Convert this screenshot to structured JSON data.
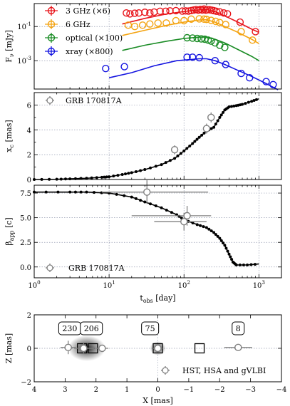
{
  "chart_data": [
    {
      "type": "scatter",
      "panel": "light curves",
      "ylabel": "F_ν [mJy]",
      "yscale": "log",
      "xscale": "log",
      "xlim": [
        1,
        2000
      ],
      "ylim": [
        2.2e-05,
        2.2
      ],
      "y_ticks": [
        {
          "value": 0.1,
          "label": "10^-1"
        },
        {
          "value": 0.001,
          "label": "10^-3"
        }
      ],
      "legend_position": "upper-left",
      "grid": true,
      "series": [
        {
          "name": "3 GHz (×6)",
          "color": "#e8141a",
          "points": [
            [
              17,
              0.62
            ],
            [
              19,
              0.55
            ],
            [
              22,
              0.6
            ],
            [
              25,
              0.62
            ],
            [
              30,
              0.68
            ],
            [
              35,
              0.62
            ],
            [
              40,
              0.7
            ],
            [
              48,
              0.78
            ],
            [
              57,
              0.78
            ],
            [
              65,
              0.82
            ],
            [
              78,
              0.85
            ],
            [
              95,
              0.8
            ],
            [
              105,
              0.82
            ],
            [
              115,
              0.8
            ],
            [
              125,
              0.86
            ],
            [
              135,
              0.92
            ],
            [
              145,
              0.98
            ],
            [
              155,
              0.9
            ],
            [
              165,
              1.0
            ],
            [
              175,
              0.92
            ],
            [
              185,
              1.05
            ],
            [
              195,
              0.9
            ],
            [
              205,
              0.95
            ],
            [
              220,
              0.95
            ],
            [
              235,
              0.9
            ],
            [
              250,
              0.85
            ],
            [
              270,
              0.78
            ],
            [
              300,
              0.72
            ],
            [
              340,
              0.62
            ],
            [
              380,
              0.55
            ],
            [
              560,
              0.18
            ],
            [
              900,
              0.05
            ]
          ],
          "model": [
            [
              15,
              0.14
            ],
            [
              30,
              0.3
            ],
            [
              60,
              0.55
            ],
            [
              100,
              0.75
            ],
            [
              160,
              0.95
            ],
            [
              200,
              1.0
            ],
            [
              260,
              0.75
            ],
            [
              350,
              0.42
            ],
            [
              500,
              0.2
            ],
            [
              800,
              0.07
            ],
            [
              1000,
              0.045
            ]
          ]
        },
        {
          "name": "6 GHz",
          "color": "#f4a310",
          "points": [
            [
              18,
              0.12
            ],
            [
              22,
              0.1
            ],
            [
              28,
              0.12
            ],
            [
              35,
              0.14
            ],
            [
              45,
              0.16
            ],
            [
              58,
              0.16
            ],
            [
              78,
              0.22
            ],
            [
              100,
              0.22
            ],
            [
              125,
              0.27
            ],
            [
              160,
              0.28
            ],
            [
              185,
              0.27
            ],
            [
              200,
              0.26
            ],
            [
              230,
              0.23
            ],
            [
              265,
              0.2
            ],
            [
              300,
              0.17
            ],
            [
              360,
              0.13
            ],
            [
              580,
              0.05
            ],
            [
              820,
              0.016
            ]
          ],
          "model": [
            [
              15,
              0.03
            ],
            [
              30,
              0.06
            ],
            [
              60,
              0.12
            ],
            [
              100,
              0.18
            ],
            [
              160,
              0.24
            ],
            [
              200,
              0.25
            ],
            [
              260,
              0.18
            ],
            [
              350,
              0.1
            ],
            [
              500,
              0.05
            ],
            [
              800,
              0.018
            ],
            [
              1000,
              0.01
            ]
          ]
        },
        {
          "name": "optical (×100)",
          "color": "#1a8c25",
          "points": [
            [
              110,
              0.022
            ],
            [
              130,
              0.021
            ],
            [
              150,
              0.02
            ],
            [
              170,
              0.019
            ],
            [
              190,
              0.018
            ],
            [
              210,
              0.016
            ],
            [
              230,
              0.014
            ],
            [
              260,
              0.011
            ],
            [
              300,
              0.008
            ],
            [
              350,
              0.006
            ]
          ],
          "model": [
            [
              15,
              0.004
            ],
            [
              30,
              0.008
            ],
            [
              60,
              0.014
            ],
            [
              100,
              0.02
            ],
            [
              160,
              0.024
            ],
            [
              200,
              0.024
            ],
            [
              260,
              0.018
            ],
            [
              350,
              0.011
            ],
            [
              500,
              0.005
            ],
            [
              800,
              0.0018
            ],
            [
              1000,
              0.001
            ]
          ]
        },
        {
          "name": "xray (×800)",
          "color": "#1414e0",
          "points": [
            [
              9,
              0.00035
            ],
            [
              16,
              0.00045
            ],
            [
              110,
              0.0016
            ],
            [
              130,
              0.0016
            ],
            [
              160,
              0.0015
            ],
            [
              260,
              0.001
            ],
            [
              360,
              0.0006
            ],
            [
              580,
              0.00018
            ],
            [
              750,
              0.0001
            ],
            [
              1250,
              6e-05
            ],
            [
              1550,
              4e-05
            ]
          ],
          "model": [
            [
              10,
              0.0001
            ],
            [
              20,
              0.0002
            ],
            [
              40,
              0.0005
            ],
            [
              80,
              0.001
            ],
            [
              160,
              0.0013
            ],
            [
              200,
              0.0013
            ],
            [
              260,
              0.001
            ],
            [
              350,
              0.0006
            ],
            [
              500,
              0.0003
            ],
            [
              800,
              0.00012
            ],
            [
              1200,
              5e-05
            ],
            [
              1800,
              2e-05
            ]
          ]
        }
      ]
    },
    {
      "type": "scatter",
      "panel": "centroid offset",
      "ylabel": "x_c [mas]",
      "xscale": "log",
      "xlim": [
        1,
        2000
      ],
      "ylim": [
        0,
        7
      ],
      "y_ticks": [
        0,
        2,
        4,
        6
      ],
      "legend": "GRB 170817A",
      "legend_position": "top-left",
      "grid": true,
      "model_line": [
        [
          1,
          0.0
        ],
        [
          2,
          0.02
        ],
        [
          3,
          0.05
        ],
        [
          5,
          0.1
        ],
        [
          8,
          0.18
        ],
        [
          10,
          0.22
        ],
        [
          15,
          0.4
        ],
        [
          20,
          0.55
        ],
        [
          30,
          0.8
        ],
        [
          50,
          1.2
        ],
        [
          75,
          1.7
        ],
        [
          100,
          2.3
        ],
        [
          130,
          2.9
        ],
        [
          160,
          3.4
        ],
        [
          200,
          3.9
        ],
        [
          250,
          4.2
        ],
        [
          300,
          5.0
        ],
        [
          350,
          5.6
        ],
        [
          400,
          5.85
        ],
        [
          500,
          5.95
        ],
        [
          600,
          6.05
        ],
        [
          800,
          6.3
        ],
        [
          1000,
          6.5
        ]
      ],
      "observations": [
        {
          "x": 75,
          "y": 2.4,
          "yerr": 0.35
        },
        {
          "x": 200,
          "y": 4.1,
          "yerr": 0.4
        },
        {
          "x": 230,
          "y": 5.0,
          "yerr": 0.4
        }
      ]
    },
    {
      "type": "scatter",
      "panel": "apparent velocity",
      "ylabel": "β_app [c]",
      "xlabel": "t_obs [day]",
      "xscale": "log",
      "xlim": [
        1,
        2000
      ],
      "ylim": [
        -1.1,
        8.3
      ],
      "y_ticks": [
        0.0,
        2.5,
        5.0,
        7.5
      ],
      "x_ticks": [
        {
          "value": 1,
          "label": "10^0"
        },
        {
          "value": 10,
          "label": "10^1"
        },
        {
          "value": 100,
          "label": "10^2"
        },
        {
          "value": 1000,
          "label": "10^3"
        }
      ],
      "legend": "GRB 170817A",
      "legend_position": "bottom-left",
      "grid": true,
      "model_line": [
        [
          1,
          7.6
        ],
        [
          3,
          7.6
        ],
        [
          5,
          7.6
        ],
        [
          10,
          7.5
        ],
        [
          20,
          7.1
        ],
        [
          30,
          6.6
        ],
        [
          50,
          6.0
        ],
        [
          80,
          5.3
        ],
        [
          100,
          4.8
        ],
        [
          150,
          4.3
        ],
        [
          200,
          4.0
        ],
        [
          250,
          3.5
        ],
        [
          300,
          2.9
        ],
        [
          350,
          2.2
        ],
        [
          400,
          1.3
        ],
        [
          450,
          0.5
        ],
        [
          500,
          0.2
        ],
        [
          700,
          0.2
        ],
        [
          1000,
          0.3
        ]
      ],
      "observations": [
        {
          "x": 32,
          "y": 7.6,
          "xlo": 8,
          "xhi": 210,
          "yerr": 1.2
        },
        {
          "x": 110,
          "y": 5.2,
          "xlo": 20,
          "xhi": 230,
          "yerr": 1.0
        },
        {
          "x": 100,
          "y": 4.6,
          "xlo": 40,
          "xhi": 200,
          "yerr": 0.9
        }
      ]
    },
    {
      "type": "scatter",
      "panel": "sky position",
      "xlabel": "X [mas]",
      "ylabel": "Z [mas]",
      "xlim": [
        4,
        -4
      ],
      "ylim": [
        -2,
        2
      ],
      "x_ticks": [
        4,
        3,
        2,
        1,
        0,
        -1,
        -2,
        -3,
        -4
      ],
      "y_ticks": [
        -2,
        0,
        2
      ],
      "legend": "HST, HSA and gVLBI",
      "legend_position": "bottom-right",
      "grid": true,
      "time_labels": [
        {
          "text": "230",
          "x": 2.85
        },
        {
          "text": "206",
          "x": 2.15
        },
        {
          "text": "75",
          "x": 0.25
        },
        {
          "text": "8",
          "x": -2.6
        }
      ],
      "model_squares": [
        2.45,
        2.1,
        0.0,
        -1.35
      ],
      "observations": [
        {
          "x": 2.9,
          "y": 0.05,
          "xerr": 0.25,
          "yerr": 0.4
        },
        {
          "x": 2.4,
          "y": 0.0,
          "xerr": 0.3,
          "yerr": 0.3
        },
        {
          "x": 1.8,
          "y": 0.0,
          "xerr": 0.2,
          "yerr": 0.2
        },
        {
          "x": 0.0,
          "y": 0.0,
          "xerr": 0.15,
          "yerr": 0.15
        },
        {
          "x": -2.6,
          "y": 0.05,
          "xerr": 0.45,
          "yerr": 0.1
        }
      ],
      "blobs": [
        2.3,
        0.0
      ]
    }
  ]
}
